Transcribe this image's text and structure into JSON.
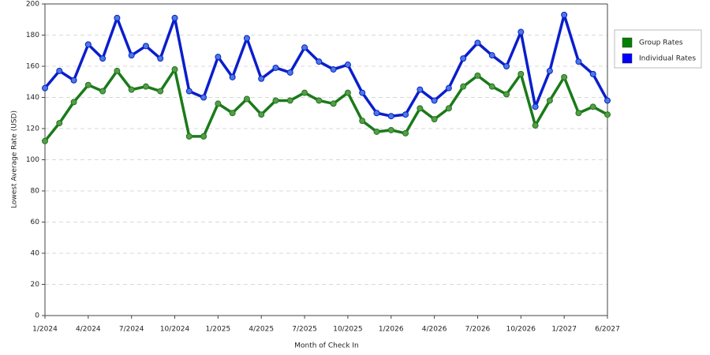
{
  "chart_data": {
    "type": "line",
    "x_label": "Month of Check In",
    "y_label": "Lowest Average Rate (USD)",
    "categories": [
      "1/2024",
      null,
      null,
      "4/2024",
      null,
      null,
      "7/2024",
      null,
      null,
      "10/2024",
      null,
      null,
      "1/2025",
      null,
      null,
      "4/2025",
      null,
      null,
      "7/2025",
      null,
      null,
      "10/2025",
      null,
      null,
      "1/2026",
      null,
      null,
      "4/2026",
      null,
      null,
      "7/2026",
      null,
      null,
      "10/2026",
      null,
      null,
      "1/2027",
      null,
      null,
      "6/2027"
    ],
    "series": [
      {
        "name": "Group Rates",
        "color": "#1a7a1a",
        "marker_color": "#5a9a4a",
        "legend_color": "#008000",
        "values": [
          112,
          123.5,
          137,
          148,
          144,
          157,
          145,
          147,
          144,
          158,
          115,
          115,
          136,
          130,
          139,
          129,
          138,
          138,
          143,
          138,
          136,
          143,
          125,
          118,
          119,
          117,
          133,
          126,
          133,
          147,
          154,
          147,
          142,
          155,
          122,
          138,
          153,
          130,
          134,
          129
        ]
      },
      {
        "name": "Individual Rates",
        "color": "#0a1ecc",
        "marker_color": "#4a7ae0",
        "legend_color": "#0000ff",
        "values": [
          146,
          157,
          151,
          174,
          165,
          191,
          167,
          173,
          165,
          191,
          144,
          140,
          166,
          153,
          178,
          152,
          159,
          156,
          172,
          163,
          158,
          161,
          143,
          130,
          128,
          129,
          145,
          138,
          146,
          165,
          175,
          167,
          160,
          182,
          134,
          157,
          193,
          163,
          155,
          138
        ]
      }
    ],
    "ylim": [
      0,
      200
    ],
    "yticks": [
      0,
      20,
      40,
      60,
      80,
      100,
      120,
      140,
      160,
      180,
      200
    ],
    "grid": true
  }
}
